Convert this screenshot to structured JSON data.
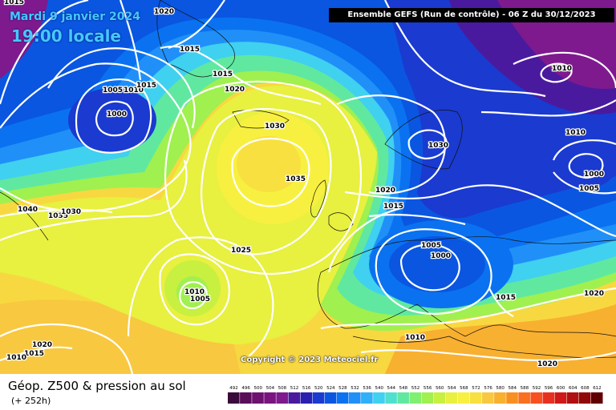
{
  "header": {
    "date": "Mardi 9 janvier 2024",
    "time": "19:00 locale",
    "run": "Ensemble GEFS  (Run de contrôle)  -  06 Z du 30/12/2023"
  },
  "footer": {
    "title": "Géop. Z500 & pression au sol",
    "subtitle": "(+ 252h)",
    "copyright": "Copyright © 2023 Meteociel.fr"
  },
  "legend": {
    "values": [
      "492",
      "496",
      "500",
      "504",
      "508",
      "512",
      "516",
      "520",
      "524",
      "528",
      "532",
      "536",
      "540",
      "544",
      "548",
      "552",
      "556",
      "560",
      "564",
      "568",
      "572",
      "576",
      "580",
      "584",
      "588",
      "592",
      "596",
      "600",
      "604",
      "608",
      "612"
    ],
    "colors": [
      "#3a0a3a",
      "#5a0e5a",
      "#6e1270",
      "#7a147e",
      "#7e1a8e",
      "#4a1a9e",
      "#2a20b0",
      "#1a3ad0",
      "#0a56e0",
      "#0a72f0",
      "#2090f8",
      "#30b0f8",
      "#40d0f0",
      "#50e0d0",
      "#60e8a0",
      "#80f070",
      "#a0f050",
      "#c8f040",
      "#e8f040",
      "#f8f040",
      "#f8e040",
      "#f8c840",
      "#f8b030",
      "#f89020",
      "#f87020",
      "#f85020",
      "#e83020",
      "#d01818",
      "#b01010",
      "#900808",
      "#600000"
    ]
  },
  "pressure_labels": [
    {
      "text": "1020",
      "id": "p1"
    },
    {
      "text": "1015",
      "id": "p2"
    },
    {
      "text": "1015",
      "id": "p3"
    },
    {
      "text": "1015",
      "id": "p4"
    },
    {
      "text": "1005",
      "id": "p5"
    },
    {
      "text": "1010",
      "id": "p6"
    },
    {
      "text": "1015",
      "id": "p7"
    },
    {
      "text": "1000",
      "id": "p8"
    },
    {
      "text": "1020",
      "id": "p9"
    },
    {
      "text": "1030",
      "id": "p10"
    },
    {
      "text": "1035",
      "id": "p11"
    },
    {
      "text": "1030",
      "id": "p12"
    },
    {
      "text": "1010",
      "id": "p13"
    },
    {
      "text": "1010",
      "id": "p14"
    },
    {
      "text": "1000",
      "id": "p15"
    },
    {
      "text": "1005",
      "id": "p16"
    },
    {
      "text": "1020",
      "id": "p17"
    },
    {
      "text": "1015",
      "id": "p18"
    },
    {
      "text": "1040",
      "id": "p19"
    },
    {
      "text": "1035",
      "id": "p20"
    },
    {
      "text": "1030",
      "id": "p21"
    },
    {
      "text": "1025",
      "id": "p22"
    },
    {
      "text": "1005",
      "id": "p23"
    },
    {
      "text": "1000",
      "id": "p24"
    },
    {
      "text": "1010",
      "id": "p25"
    },
    {
      "text": "1005",
      "id": "p26"
    },
    {
      "text": "1015",
      "id": "p27"
    },
    {
      "text": "1020",
      "id": "p28"
    },
    {
      "text": "1010",
      "id": "p29"
    },
    {
      "text": "1020",
      "id": "p30"
    },
    {
      "text": "1020",
      "id": "p31"
    },
    {
      "text": "1015",
      "id": "p32"
    },
    {
      "text": "1010",
      "id": "p33"
    }
  ]
}
